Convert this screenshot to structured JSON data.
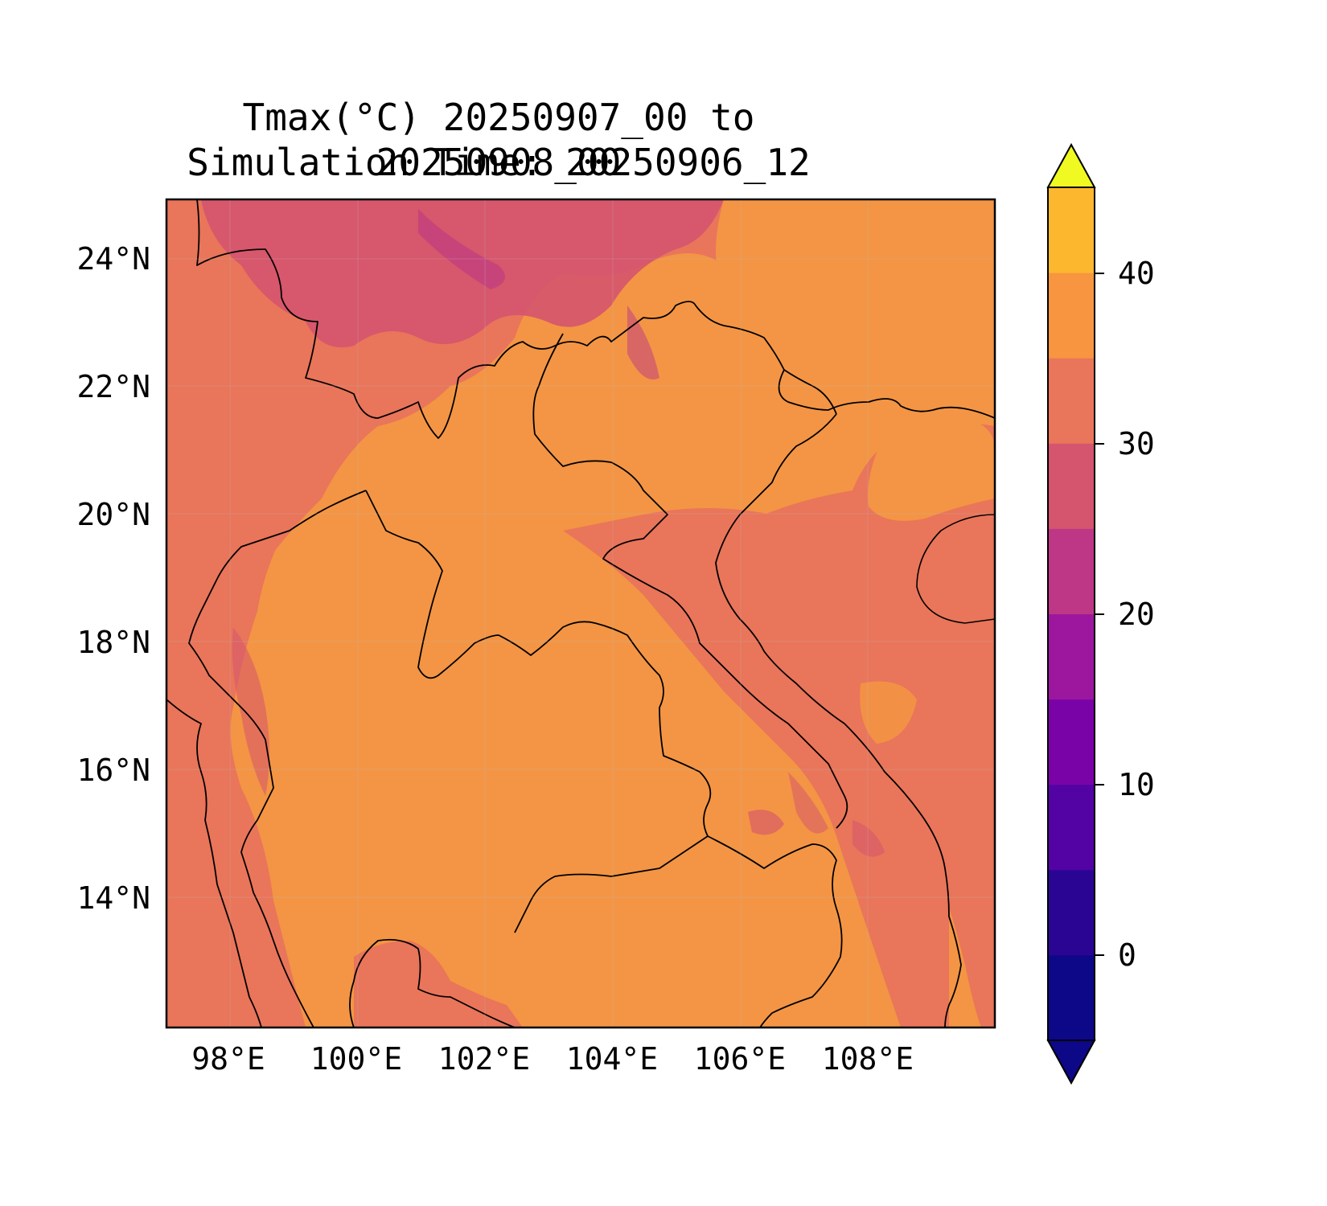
{
  "title": "Tmax(°C) 20250907_00 to 20250908_00",
  "subtitle": "Simulation Time: 20250906_12",
  "map": {
    "variable": "Tmax",
    "units": "°C",
    "lon_range": [
      97,
      110
    ],
    "lat_range": [
      12,
      25
    ],
    "x_ticks": [
      "98°E",
      "100°E",
      "102°E",
      "104°E",
      "106°E",
      "108°E"
    ],
    "y_ticks": [
      "24°N",
      "22°N",
      "20°N",
      "18°N",
      "16°N",
      "14°N"
    ],
    "background_fill_color": "#f09545",
    "sea_fill_color": "#e9755a"
  },
  "colorbar": {
    "ticks": [
      "40",
      "30",
      "20",
      "10",
      "0"
    ],
    "levels": [
      -5,
      0,
      5,
      10,
      15,
      20,
      25,
      30,
      35,
      40,
      45
    ],
    "colors": [
      "#0d0887",
      "#2a0594",
      "#5302a3",
      "#7a03a8",
      "#9c179e",
      "#bd3786",
      "#d5546e",
      "#e9755a",
      "#f89540",
      "#fdb72f",
      "#f5e025"
    ],
    "extend": "both",
    "under_color": "#0d0887",
    "over_color": "#f0f921"
  }
}
